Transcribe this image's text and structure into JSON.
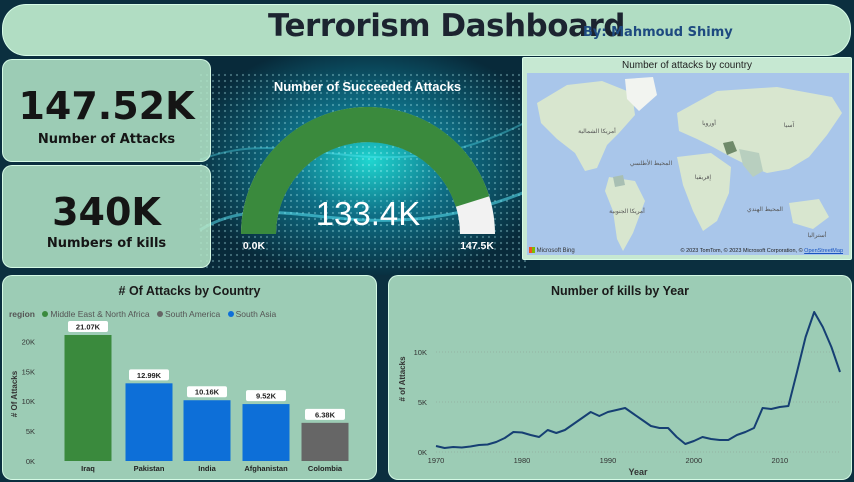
{
  "header": {
    "title": "Terrorism Dashboard",
    "author": "By: Mahmoud Shimy"
  },
  "kpis": {
    "attacks_value": "147.52K",
    "attacks_label": "Number of Attacks",
    "kills_value": "340K",
    "kills_label": "Numbers of kills"
  },
  "gauge": {
    "title": "Number of Succeeded Attacks",
    "value_label": "133.4K",
    "min_label": "0.0K",
    "max_label": "147.5K",
    "fill_fraction": 0.904,
    "color": "#3a8a3d"
  },
  "map": {
    "title": "Number of attacks by country",
    "labels": {
      "north_america": "أمريكا الشمالية",
      "europe": "أوروبا",
      "asia": "آسيا",
      "atlantic": "المحيط الأطلسي",
      "south_america": "أمريكا الجنوبية",
      "africa": "إفريقيا",
      "indian_ocean": "المحيط الهندي",
      "australia": "أستراليا"
    },
    "bing": "Microsoft Bing",
    "copyright": "© 2023 TomTom, © 2023 Microsoft Corporation, ©",
    "osm": "OpenStreetMap"
  },
  "colors": {
    "mena": "#3a8a3d",
    "south_america": "#666666",
    "south_asia": "#0d6fd8",
    "line": "#163f73"
  },
  "chart_data": [
    {
      "type": "bar",
      "title": "# Of Attacks by Country",
      "legend_title": "region",
      "legend": [
        "Middle East & North Africa",
        "South America",
        "South Asia"
      ],
      "legend_colors": [
        "#3a8a3d",
        "#666666",
        "#0d6fd8"
      ],
      "ylabel": "# Of Attacks",
      "ylim": [
        0,
        21070
      ],
      "yticks": [
        0,
        5000,
        10000,
        15000,
        20000
      ],
      "ytick_labels": [
        "0K",
        "5K",
        "10K",
        "15K",
        "20K"
      ],
      "categories": [
        "Iraq",
        "Pakistan",
        "India",
        "Afghanistan",
        "Colombia"
      ],
      "values": [
        21070,
        12990,
        10160,
        9520,
        6380
      ],
      "value_labels": [
        "21.07K",
        "12.99K",
        "10.16K",
        "9.52K",
        "6.38K"
      ],
      "bar_colors": [
        "#3a8a3d",
        "#0d6fd8",
        "#0d6fd8",
        "#0d6fd8",
        "#666666"
      ]
    },
    {
      "type": "line",
      "title": "Number of kills by Year",
      "xlabel": "Year",
      "ylabel": "# of Attacks",
      "xlim": [
        1970,
        2017
      ],
      "ylim": [
        0,
        15000
      ],
      "xticks": [
        1970,
        1980,
        1990,
        2000,
        2010
      ],
      "xtick_labels": [
        "1970",
        "1980",
        "1990",
        "2000",
        "2010"
      ],
      "yticks": [
        0,
        5000,
        10000
      ],
      "ytick_labels": [
        "0K",
        "5K",
        "10K"
      ],
      "x": [
        1970,
        1971,
        1972,
        1973,
        1974,
        1975,
        1976,
        1977,
        1978,
        1979,
        1980,
        1981,
        1982,
        1983,
        1984,
        1985,
        1986,
        1987,
        1988,
        1989,
        1990,
        1991,
        1992,
        1994,
        1995,
        1996,
        1997,
        1998,
        1999,
        2000,
        2001,
        2002,
        2003,
        2004,
        2005,
        2006,
        2007,
        2008,
        2009,
        2010,
        2011,
        2012,
        2013,
        2014,
        2015,
        2016,
        2017
      ],
      "y": [
        600,
        400,
        500,
        450,
        550,
        700,
        750,
        1000,
        1400,
        2000,
        1950,
        1700,
        1500,
        2200,
        1900,
        2200,
        2800,
        3400,
        4000,
        3600,
        4000,
        4200,
        4400,
        3200,
        2600,
        2400,
        2400,
        1500,
        800,
        1100,
        1500,
        1300,
        1200,
        1200,
        1700,
        2000,
        2400,
        4400,
        4300,
        4500,
        4600,
        8000,
        11500,
        14000,
        12500,
        10500,
        8000
      ]
    }
  ]
}
